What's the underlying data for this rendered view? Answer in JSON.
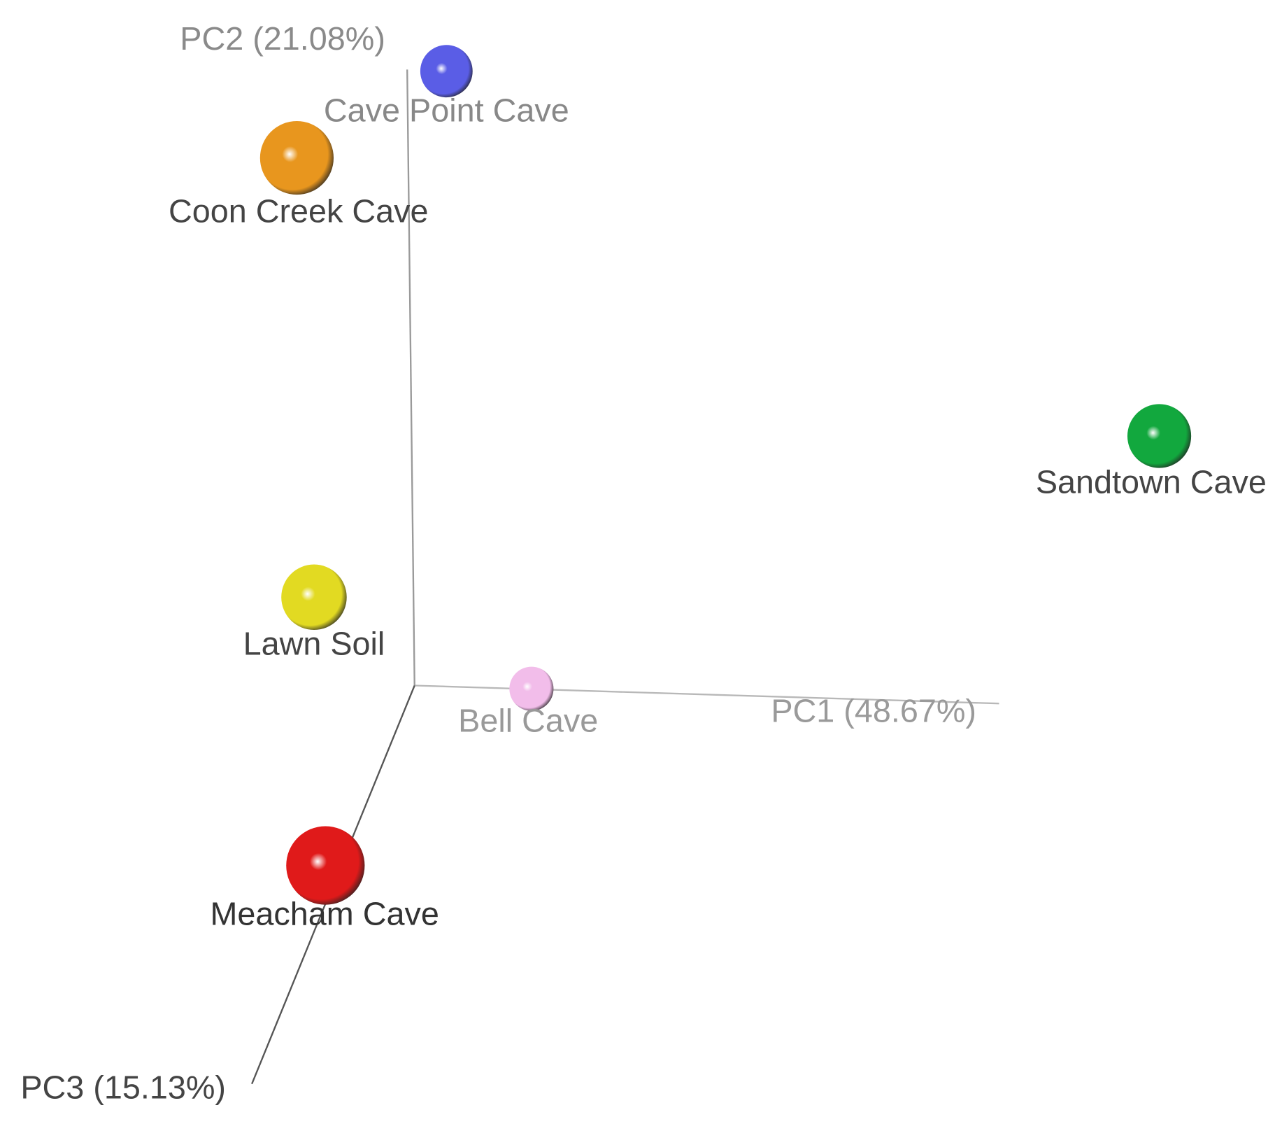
{
  "axes": [
    {
      "label": "PC1 (48.67%)"
    },
    {
      "label": "PC2 (21.08%)"
    },
    {
      "label": "PC3 (15.13%)"
    }
  ],
  "points": [
    {
      "label": "Cave Point Cave",
      "color": "#5a5de6"
    },
    {
      "label": "Coon Creek Cave",
      "color": "#e8961e"
    },
    {
      "label": "Sandtown Cave",
      "color": "#12a83e"
    },
    {
      "label": "Lawn Soil",
      "color": "#e2da22"
    },
    {
      "label": "Bell Cave",
      "color": "#f2bdea"
    },
    {
      "label": "Meacham Cave",
      "color": "#e01a1a"
    }
  ]
}
